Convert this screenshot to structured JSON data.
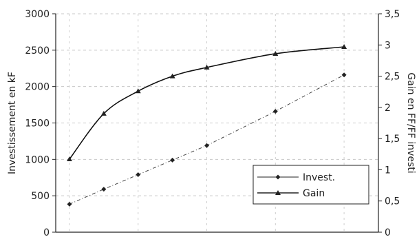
{
  "chart_data": {
    "type": "line",
    "x": [
      0,
      0.5,
      1,
      1.5,
      2,
      3,
      4
    ],
    "series": [
      {
        "name": "Invest.",
        "axis": "left",
        "marker": "diamond",
        "line_style": "dashed",
        "values": [
          385,
          590,
          790,
          990,
          1190,
          1660,
          2160
        ]
      },
      {
        "name": "Gain",
        "axis": "right",
        "marker": "triangle",
        "line_style": "solid",
        "values": [
          1.17,
          1.9,
          2.26,
          2.5,
          2.64,
          2.86,
          2.97
        ]
      }
    ],
    "y_left": {
      "label": "Investissement en kF",
      "ticks": [
        "0",
        "500",
        "1000",
        "1500",
        "2000",
        "2500",
        "3000"
      ],
      "range": [
        0,
        3000
      ]
    },
    "y_right": {
      "label": "Gain en FF/FF investi",
      "ticks": [
        "0",
        "0,5",
        "1",
        "1,5",
        "2",
        "2,5",
        "3",
        "3,5"
      ],
      "range": [
        0,
        3.5
      ]
    },
    "grid": true,
    "legend": "center-right"
  }
}
